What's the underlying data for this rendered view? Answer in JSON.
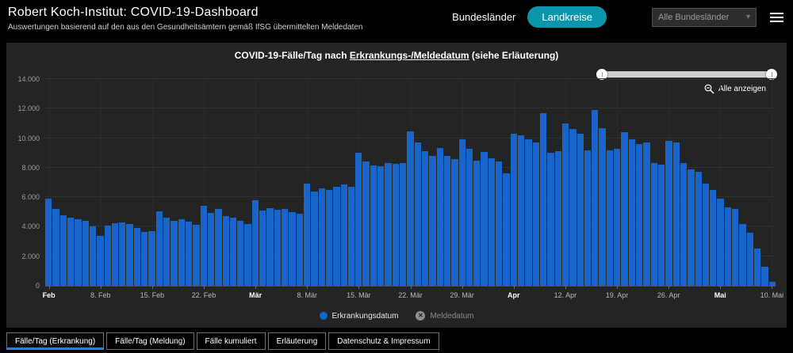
{
  "header": {
    "title": "Robert Koch-Institut: COVID-19-Dashboard",
    "subtitle": "Auswertungen basierend auf den aus den Gesundheitsämtern gemäß IfSG übermittelten Meldedaten",
    "bundeslaender_label": "Bundesländer",
    "landkreise_label": "Landkreise",
    "region_select_value": "Alle Bundesländer"
  },
  "chart": {
    "title_prefix": "COVID-19-Fälle/Tag nach ",
    "title_link": "Erkrankungs-/Meldedatum",
    "title_suffix": " (siehe Erläuterung)",
    "zoom_reset_label": "Alle anzeigen"
  },
  "legend": {
    "items": [
      {
        "label": "Erkrankungsdatum",
        "active": true
      },
      {
        "label": "Meldedatum",
        "active": false
      }
    ]
  },
  "footer": {
    "tabs": [
      {
        "label": "Fälle/Tag (Erkrankung)",
        "active": true
      },
      {
        "label": "Fälle/Tag (Meldung)",
        "active": false
      },
      {
        "label": "Fälle kumuliert",
        "active": false
      },
      {
        "label": "Erläuterung",
        "active": false
      },
      {
        "label": "Datenschutz & Impressum",
        "active": false
      }
    ]
  },
  "colors": {
    "bar_blue": "#1765c8",
    "teal_button": "#0b97ab",
    "panel_bg": "#242424",
    "page_bg": "#000000"
  },
  "chart_data": {
    "type": "bar",
    "title": "COVID-19-Fälle/Tag nach Erkrankungs-/Meldedatum (siehe Erläuterung)",
    "xlabel": "",
    "ylabel": "",
    "ylim": [
      0,
      14000
    ],
    "grid": true,
    "legend_position": "bottom",
    "y_tick_labels": [
      "0",
      "2.000",
      "4.000",
      "6.000",
      "8.000",
      "10.000",
      "12.000",
      "14.000"
    ],
    "x_ticks": [
      {
        "label": "Feb",
        "index": 0,
        "bold": true
      },
      {
        "label": "8. Feb",
        "index": 7,
        "bold": false
      },
      {
        "label": "15. Feb",
        "index": 14,
        "bold": false
      },
      {
        "label": "22. Feb",
        "index": 21,
        "bold": false
      },
      {
        "label": "Mär",
        "index": 28,
        "bold": true
      },
      {
        "label": "8. Mär",
        "index": 35,
        "bold": false
      },
      {
        "label": "15. Mär",
        "index": 42,
        "bold": false
      },
      {
        "label": "22. Mär",
        "index": 49,
        "bold": false
      },
      {
        "label": "29. Mär",
        "index": 56,
        "bold": false
      },
      {
        "label": "Apr",
        "index": 63,
        "bold": true
      },
      {
        "label": "12. Apr",
        "index": 70,
        "bold": false
      },
      {
        "label": "19. Apr",
        "index": 77,
        "bold": false
      },
      {
        "label": "26. Apr",
        "index": 84,
        "bold": false
      },
      {
        "label": "Mai",
        "index": 91,
        "bold": true
      },
      {
        "label": "10. Mai",
        "index": 98,
        "bold": false
      }
    ],
    "series": [
      {
        "name": "Erkrankungsdatum",
        "color": "#1765c8",
        "values": [
          5900,
          5200,
          4750,
          4600,
          4500,
          4400,
          4000,
          3400,
          4100,
          4250,
          4300,
          4200,
          3900,
          3650,
          3700,
          5050,
          4600,
          4400,
          4500,
          4350,
          4150,
          5400,
          4950,
          5200,
          4700,
          4600,
          4400,
          4200,
          5800,
          5100,
          5250,
          5150,
          5200,
          5000,
          4900,
          6900,
          6400,
          6600,
          6500,
          6700,
          6850,
          6700,
          9000,
          8400,
          8150,
          8100,
          8300,
          8250,
          8300,
          10450,
          9700,
          9100,
          8800,
          9350,
          8800,
          8600,
          9900,
          9300,
          8500,
          9050,
          8650,
          8400,
          7600,
          10300,
          10200,
          9900,
          9700,
          11700,
          9000,
          9100,
          11000,
          10600,
          10300,
          9200,
          11900,
          10700,
          9200,
          9300,
          10400,
          9900,
          9600,
          9700,
          8300,
          8200,
          9800,
          9700,
          8300,
          7900,
          7700,
          6900,
          6500,
          5900,
          5300,
          5200,
          4200,
          3600,
          2500,
          1300,
          250
        ]
      }
    ],
    "disabled_series": [
      "Meldedatum"
    ]
  }
}
